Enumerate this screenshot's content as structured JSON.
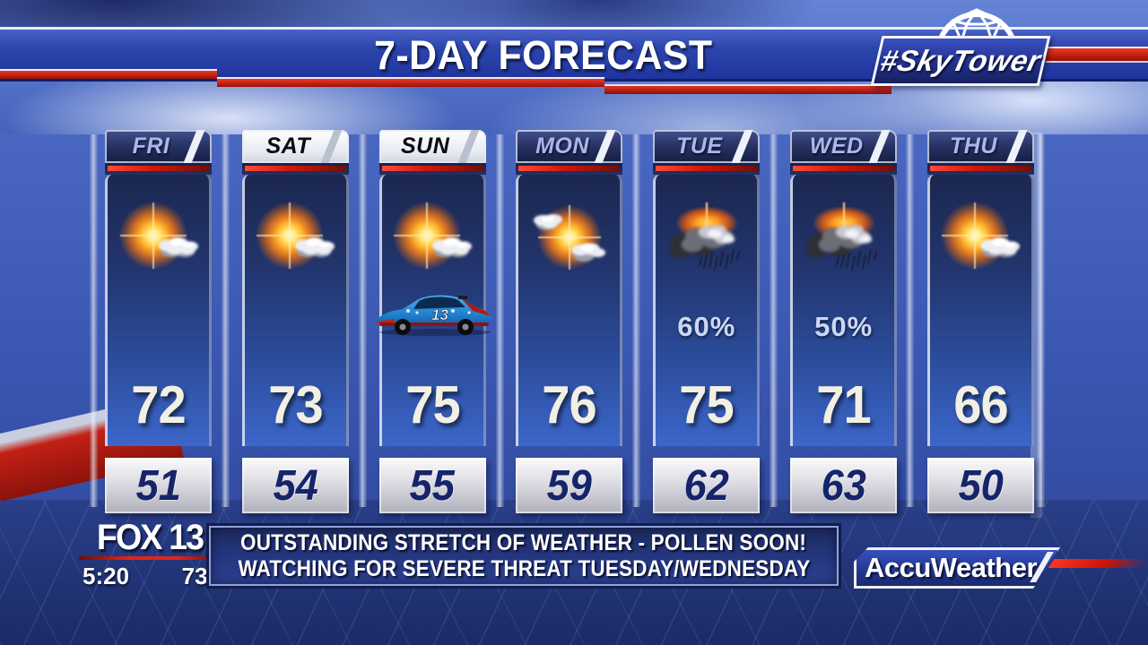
{
  "header": {
    "title": "7-DAY FORECAST",
    "skytower_label": "#SkyTower"
  },
  "forecast": {
    "days": [
      {
        "label": "FRI",
        "high": "72",
        "low": "51",
        "icon": "mostly-sunny",
        "weekend": false
      },
      {
        "label": "SAT",
        "high": "73",
        "low": "54",
        "icon": "mostly-sunny",
        "weekend": true
      },
      {
        "label": "SUN",
        "high": "75",
        "low": "55",
        "icon": "mostly-sunny",
        "weekend": true,
        "overlay": "race-car"
      },
      {
        "label": "MON",
        "high": "76",
        "low": "59",
        "icon": "partly-cloudy",
        "weekend": false
      },
      {
        "label": "TUE",
        "high": "75",
        "low": "62",
        "icon": "scattered-storms",
        "weekend": false,
        "precip": "60%"
      },
      {
        "label": "WED",
        "high": "71",
        "low": "63",
        "icon": "scattered-storms",
        "weekend": false,
        "precip": "50%"
      },
      {
        "label": "THU",
        "high": "66",
        "low": "50",
        "icon": "mostly-sunny",
        "weekend": false
      }
    ],
    "race_car_number": "13"
  },
  "footer": {
    "station": "FOX 13",
    "time": "5:20",
    "current_temp": "73°",
    "ticker_line1": "OUTSTANDING STRETCH OF WEATHER - POLLEN SOON!",
    "ticker_line2": "WATCHING FOR SEVERE THREAT TUESDAY/WEDNESDAY",
    "brand": "AccuWeather"
  },
  "colors": {
    "banner_blue": "#2c46ae",
    "accent_red": "#d01808",
    "panel_blue": "#2c4e9e",
    "navy_text": "#16246a",
    "high_temp_text": "#f2efe4",
    "day_label_text": "#a9b8ea"
  }
}
